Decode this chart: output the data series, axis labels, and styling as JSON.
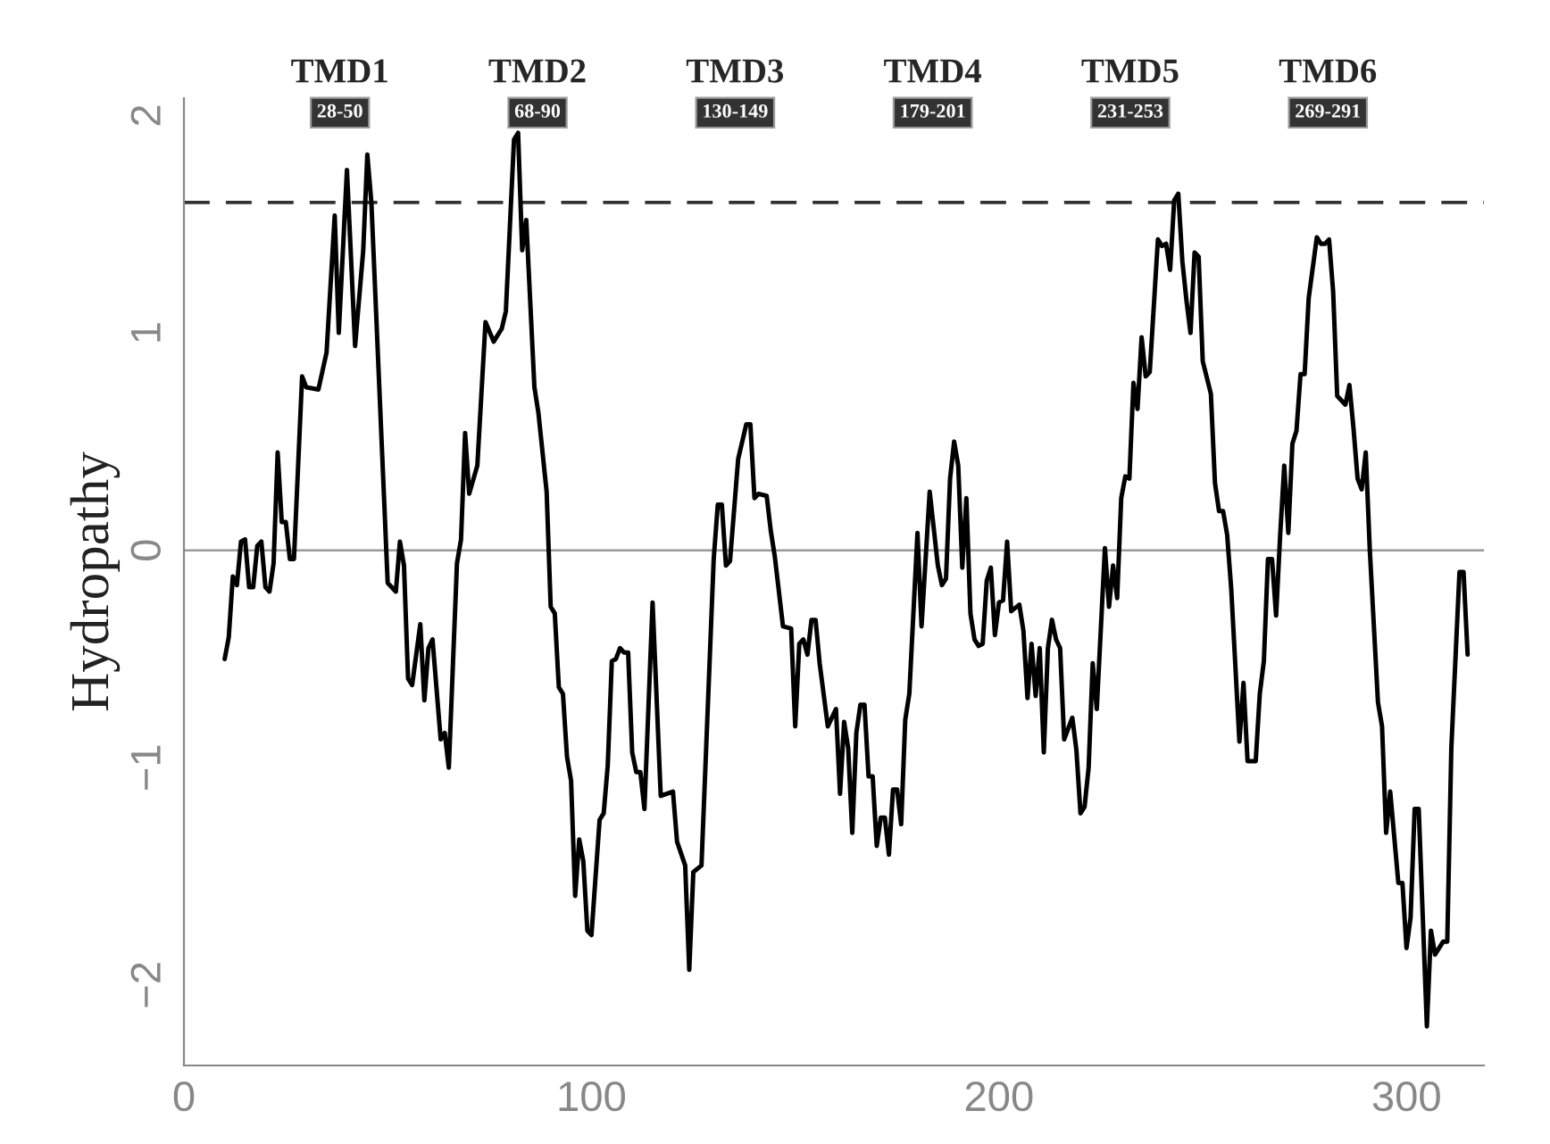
{
  "chart_data": {
    "type": "line",
    "ylabel": "Hydropathy",
    "x": [
      10,
      11,
      12,
      13,
      14,
      15,
      16,
      17,
      18,
      19,
      20,
      21,
      22,
      23,
      24,
      25,
      26,
      27,
      29,
      30,
      33,
      35,
      37,
      38,
      40,
      42,
      44,
      45,
      46,
      50,
      52,
      53,
      54,
      55,
      56,
      58,
      59,
      60,
      61,
      63,
      64,
      65,
      67,
      68,
      69,
      70,
      72,
      74,
      76,
      78,
      79,
      81,
      82,
      83,
      84,
      86,
      87,
      89,
      90,
      91,
      92,
      93,
      94,
      95,
      96,
      97,
      98,
      99,
      100,
      102,
      103,
      104,
      105,
      106,
      107,
      108,
      109,
      110,
      111,
      112,
      113,
      115,
      117,
      120,
      121,
      123,
      124,
      125,
      127,
      130,
      131,
      132,
      133,
      134,
      136,
      138,
      139,
      140,
      141,
      143,
      144,
      145,
      147,
      149,
      150,
      151,
      152,
      153,
      154,
      155,
      156,
      158,
      160,
      161,
      162,
      163,
      164,
      165,
      166,
      167,
      168,
      169,
      170,
      171,
      172,
      173,
      174,
      175,
      176,
      177,
      178,
      180,
      181,
      183,
      185,
      186,
      187,
      188,
      189,
      190,
      191,
      192,
      193,
      194,
      195,
      196,
      197,
      198,
      199,
      200,
      201,
      202,
      203,
      205,
      206,
      207,
      208,
      209,
      210,
      211,
      212,
      213,
      214,
      215,
      216,
      218,
      219,
      220,
      221,
      222,
      223,
      224,
      226,
      227,
      228,
      229,
      230,
      231,
      232,
      233,
      234,
      235,
      236,
      237,
      239,
      240,
      241,
      242,
      243,
      244,
      245,
      246,
      247,
      248,
      249,
      250,
      252,
      253,
      254,
      255,
      256,
      257,
      259,
      260,
      261,
      263,
      264,
      265,
      266,
      267,
      268,
      269,
      270,
      271,
      272,
      273,
      274,
      275,
      276,
      278,
      279,
      280,
      281,
      282,
      283,
      285,
      286,
      287,
      288,
      289,
      290,
      291,
      293,
      294,
      295,
      296,
      298,
      299,
      300,
      301,
      302,
      303,
      305,
      306,
      307,
      309,
      310,
      311,
      313,
      314,
      315
    ],
    "series": [
      {
        "color": "#000000",
        "values": [
          -0.5,
          -0.4,
          -0.12,
          -0.16,
          0.04,
          0.05,
          -0.17,
          -0.17,
          0.02,
          0.04,
          -0.17,
          -0.19,
          -0.06,
          0.45,
          0.13,
          0.13,
          -0.04,
          -0.04,
          0.8,
          0.75,
          0.74,
          0.91,
          1.54,
          1.0,
          1.75,
          0.94,
          1.38,
          1.82,
          1.6,
          -0.15,
          -0.19,
          0.04,
          -0.07,
          -0.59,
          -0.62,
          -0.34,
          -0.69,
          -0.45,
          -0.41,
          -0.87,
          -0.84,
          -1.0,
          -0.06,
          0.05,
          0.54,
          0.26,
          0.39,
          1.05,
          0.96,
          1.02,
          1.1,
          1.89,
          1.92,
          1.38,
          1.52,
          0.75,
          0.63,
          0.27,
          -0.26,
          -0.29,
          -0.63,
          -0.66,
          -0.95,
          -1.06,
          -1.59,
          -1.33,
          -1.43,
          -1.75,
          -1.77,
          -1.24,
          -1.21,
          -0.99,
          -0.51,
          -0.5,
          -0.45,
          -0.47,
          -0.47,
          -0.93,
          -1.02,
          -1.02,
          -1.19,
          -0.24,
          -1.13,
          -1.11,
          -1.34,
          -1.45,
          -1.93,
          -1.48,
          -1.45,
          -0.04,
          0.21,
          0.21,
          -0.07,
          -0.05,
          0.42,
          0.58,
          0.58,
          0.24,
          0.26,
          0.25,
          0.09,
          -0.03,
          -0.35,
          -0.36,
          -0.81,
          -0.43,
          -0.41,
          -0.48,
          -0.32,
          -0.32,
          -0.52,
          -0.81,
          -0.73,
          -1.12,
          -0.79,
          -0.91,
          -1.3,
          -0.84,
          -0.71,
          -0.71,
          -1.04,
          -1.04,
          -1.36,
          -1.23,
          -1.23,
          -1.4,
          -1.1,
          -1.1,
          -1.26,
          -0.78,
          -0.66,
          0.08,
          -0.35,
          0.27,
          -0.07,
          -0.16,
          -0.13,
          0.33,
          0.5,
          0.39,
          -0.08,
          0.24,
          -0.29,
          -0.41,
          -0.44,
          -0.43,
          -0.14,
          -0.08,
          -0.39,
          -0.24,
          -0.23,
          0.04,
          -0.28,
          -0.25,
          -0.37,
          -0.68,
          -0.43,
          -0.67,
          -0.45,
          -0.93,
          -0.45,
          -0.32,
          -0.41,
          -0.45,
          -0.87,
          -0.77,
          -0.92,
          -1.21,
          -1.18,
          -1.0,
          -0.52,
          -0.73,
          0.01,
          -0.26,
          -0.07,
          -0.22,
          0.24,
          0.34,
          0.33,
          0.77,
          0.65,
          0.98,
          0.8,
          0.82,
          1.43,
          1.4,
          1.41,
          1.29,
          1.61,
          1.64,
          1.33,
          1.15,
          1.0,
          1.37,
          1.35,
          0.87,
          0.72,
          0.31,
          0.18,
          0.18,
          0.07,
          -0.18,
          -0.88,
          -0.61,
          -0.97,
          -0.97,
          -0.66,
          -0.51,
          -0.04,
          -0.04,
          -0.3,
          0.07,
          0.39,
          0.08,
          0.49,
          0.55,
          0.81,
          0.81,
          1.16,
          1.44,
          1.41,
          1.41,
          1.43,
          1.19,
          0.71,
          0.67,
          0.76,
          0.56,
          0.33,
          0.28,
          0.45,
          0.0,
          -0.7,
          -0.81,
          -1.3,
          -1.11,
          -1.53,
          -1.53,
          -1.83,
          -1.69,
          -1.19,
          -1.19,
          -2.19,
          -1.75,
          -1.86,
          -1.8,
          -1.8,
          -0.91,
          -0.1,
          -0.1,
          -0.48
        ]
      }
    ],
    "xlim": [
      0,
      319
    ],
    "ylim": [
      -2.37,
      2.08
    ],
    "xticks": [
      0,
      100,
      200,
      300
    ],
    "yticks": [
      {
        "value": -2,
        "label": "−2"
      },
      {
        "value": -1,
        "label": "−1"
      },
      0,
      1,
      2
    ],
    "ref_lines": [
      {
        "axis": "y",
        "value": 1.6,
        "color": "#333333",
        "line_style": "dashed"
      },
      {
        "axis": "y",
        "value": 0,
        "color": "#999999",
        "line_style": "solid"
      }
    ],
    "annotations": [
      "TMD1",
      "28-50",
      "TMD2",
      "68-90",
      "TMD3",
      "130-149",
      "TMD4",
      "179-201",
      "TMD5",
      "231-253",
      "TMD6",
      "269-291"
    ],
    "grid": false,
    "legend": false,
    "marker": "none",
    "line_style": "solid"
  }
}
